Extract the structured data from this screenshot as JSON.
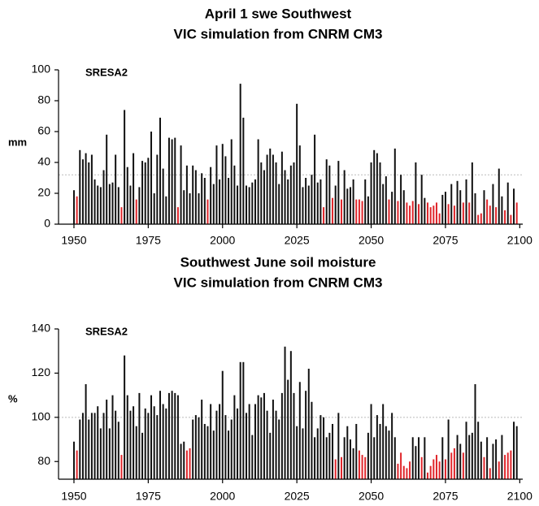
{
  "chart_data": [
    {
      "type": "bar",
      "title": "April 1 swe Southwest",
      "subtitle": "VIC simulation from CNRM CM3",
      "annotation": "SRESA2",
      "y_label": "mm",
      "xlim": [
        1947,
        2101
      ],
      "xticks": [
        1950,
        1975,
        2000,
        2025,
        2050,
        2075,
        2100
      ],
      "ylim": [
        0,
        100
      ],
      "yticks": [
        0,
        20,
        40,
        60,
        80,
        100
      ],
      "reference_line": 32,
      "reference_color": "#bbbbbb",
      "x": [
        1950,
        1951,
        1952,
        1953,
        1954,
        1955,
        1956,
        1957,
        1958,
        1959,
        1960,
        1961,
        1962,
        1963,
        1964,
        1965,
        1966,
        1967,
        1968,
        1969,
        1970,
        1971,
        1972,
        1973,
        1974,
        1975,
        1976,
        1977,
        1978,
        1979,
        1980,
        1981,
        1982,
        1983,
        1984,
        1985,
        1986,
        1987,
        1988,
        1989,
        1990,
        1991,
        1992,
        1993,
        1994,
        1995,
        1996,
        1997,
        1998,
        1999,
        2000,
        2001,
        2002,
        2003,
        2004,
        2005,
        2006,
        2007,
        2008,
        2009,
        2010,
        2011,
        2012,
        2013,
        2014,
        2015,
        2016,
        2017,
        2018,
        2019,
        2020,
        2021,
        2022,
        2023,
        2024,
        2025,
        2026,
        2027,
        2028,
        2029,
        2030,
        2031,
        2032,
        2033,
        2034,
        2035,
        2036,
        2037,
        2038,
        2039,
        2040,
        2041,
        2042,
        2043,
        2044,
        2045,
        2046,
        2047,
        2048,
        2049,
        2050,
        2051,
        2052,
        2053,
        2054,
        2055,
        2056,
        2057,
        2058,
        2059,
        2060,
        2061,
        2062,
        2063,
        2064,
        2065,
        2066,
        2067,
        2068,
        2069,
        2070,
        2071,
        2072,
        2073,
        2074,
        2075,
        2076,
        2077,
        2078,
        2079,
        2080,
        2081,
        2082,
        2083,
        2084,
        2085,
        2086,
        2087,
        2088,
        2089,
        2090,
        2091,
        2092,
        2093,
        2094,
        2095,
        2096,
        2097,
        2098,
        2099
      ],
      "series": [
        {
          "color": "#111111",
          "values": [
            22,
            null,
            48,
            42,
            46,
            40,
            45,
            29,
            25,
            24,
            35,
            58,
            26,
            27,
            45,
            24,
            null,
            74,
            37,
            25,
            46,
            null,
            24,
            41,
            40,
            43,
            60,
            20,
            45,
            69,
            36,
            18,
            56,
            55,
            56,
            null,
            51,
            22,
            38,
            20,
            38,
            35,
            20,
            33,
            30,
            null,
            37,
            26,
            51,
            29,
            52,
            44,
            30,
            55,
            38,
            25,
            91,
            69,
            25,
            24,
            27,
            29,
            55,
            40,
            35,
            45,
            49,
            45,
            40,
            26,
            47,
            35,
            29,
            38,
            40,
            78,
            51,
            24,
            30,
            25,
            32,
            58,
            27,
            29,
            null,
            42,
            38,
            null,
            25,
            41,
            null,
            35,
            23,
            24,
            29,
            null,
            null,
            null,
            29,
            18,
            40,
            48,
            46,
            40,
            26,
            31,
            null,
            21,
            49,
            null,
            32,
            22,
            null,
            null,
            null,
            40,
            null,
            32,
            17,
            null,
            null,
            null,
            null,
            null,
            19,
            21,
            null,
            26,
            null,
            28,
            22,
            null,
            29,
            null,
            40,
            20,
            null,
            null,
            22,
            null,
            null,
            26,
            null,
            36,
            18,
            null,
            27,
            null,
            23,
            null
          ]
        },
        {
          "color": "#e0262b",
          "values": [
            null,
            18,
            null,
            null,
            null,
            null,
            null,
            null,
            null,
            null,
            null,
            null,
            null,
            null,
            null,
            null,
            11,
            null,
            null,
            null,
            null,
            16,
            null,
            null,
            null,
            null,
            null,
            null,
            null,
            null,
            null,
            null,
            null,
            null,
            null,
            11,
            null,
            null,
            null,
            null,
            null,
            null,
            null,
            null,
            null,
            16,
            null,
            null,
            null,
            null,
            null,
            null,
            null,
            null,
            null,
            null,
            null,
            null,
            null,
            null,
            null,
            null,
            null,
            null,
            null,
            null,
            null,
            null,
            null,
            null,
            null,
            null,
            null,
            null,
            null,
            null,
            null,
            null,
            null,
            null,
            null,
            null,
            null,
            null,
            11,
            null,
            null,
            17,
            null,
            null,
            16,
            null,
            null,
            null,
            null,
            16,
            16,
            15,
            null,
            null,
            null,
            null,
            null,
            null,
            null,
            null,
            16,
            null,
            null,
            15,
            null,
            null,
            14,
            12,
            15,
            null,
            13,
            null,
            null,
            14,
            11,
            12,
            14,
            7,
            null,
            null,
            13,
            null,
            12,
            null,
            null,
            14,
            null,
            14,
            null,
            null,
            6,
            7,
            null,
            16,
            12,
            null,
            11,
            null,
            null,
            9,
            null,
            6,
            null,
            14
          ]
        }
      ]
    },
    {
      "type": "bar",
      "title": "Southwest June soil moisture",
      "subtitle": "VIC simulation from CNRM CM3",
      "annotation": "SRESA2",
      "y_label": "%",
      "xlim": [
        1947,
        2101
      ],
      "xticks": [
        1950,
        1975,
        2000,
        2025,
        2050,
        2075,
        2100
      ],
      "ylim": [
        72,
        140
      ],
      "yticks": [
        80,
        100,
        120,
        140
      ],
      "reference_line": 100,
      "reference_color": "#bbbbbb",
      "x": [
        1950,
        1951,
        1952,
        1953,
        1954,
        1955,
        1956,
        1957,
        1958,
        1959,
        1960,
        1961,
        1962,
        1963,
        1964,
        1965,
        1966,
        1967,
        1968,
        1969,
        1970,
        1971,
        1972,
        1973,
        1974,
        1975,
        1976,
        1977,
        1978,
        1979,
        1980,
        1981,
        1982,
        1983,
        1984,
        1985,
        1986,
        1987,
        1988,
        1989,
        1990,
        1991,
        1992,
        1993,
        1994,
        1995,
        1996,
        1997,
        1998,
        1999,
        2000,
        2001,
        2002,
        2003,
        2004,
        2005,
        2006,
        2007,
        2008,
        2009,
        2010,
        2011,
        2012,
        2013,
        2014,
        2015,
        2016,
        2017,
        2018,
        2019,
        2020,
        2021,
        2022,
        2023,
        2024,
        2025,
        2026,
        2027,
        2028,
        2029,
        2030,
        2031,
        2032,
        2033,
        2034,
        2035,
        2036,
        2037,
        2038,
        2039,
        2040,
        2041,
        2042,
        2043,
        2044,
        2045,
        2046,
        2047,
        2048,
        2049,
        2050,
        2051,
        2052,
        2053,
        2054,
        2055,
        2056,
        2057,
        2058,
        2059,
        2060,
        2061,
        2062,
        2063,
        2064,
        2065,
        2066,
        2067,
        2068,
        2069,
        2070,
        2071,
        2072,
        2073,
        2074,
        2075,
        2076,
        2077,
        2078,
        2079,
        2080,
        2081,
        2082,
        2083,
        2084,
        2085,
        2086,
        2087,
        2088,
        2089,
        2090,
        2091,
        2092,
        2093,
        2094,
        2095,
        2096,
        2097,
        2098,
        2099
      ],
      "series": [
        {
          "color": "#111111",
          "values": [
            89,
            null,
            99,
            102,
            115,
            99,
            102,
            102,
            105,
            95,
            102,
            108,
            95,
            110,
            103,
            98,
            null,
            128,
            110,
            103,
            105,
            96,
            111,
            93,
            104,
            102,
            110,
            105,
            101,
            112,
            106,
            104,
            111,
            112,
            111,
            110,
            88,
            89,
            null,
            null,
            99,
            101,
            100,
            108,
            97,
            96,
            106,
            94,
            103,
            106,
            121,
            101,
            94,
            99,
            110,
            104,
            125,
            125,
            102,
            106,
            92,
            106,
            110,
            109,
            111,
            103,
            93,
            108,
            103,
            99,
            111,
            132,
            117,
            130,
            111,
            96,
            116,
            95,
            112,
            122,
            107,
            91,
            95,
            101,
            100,
            91,
            93,
            97,
            null,
            102,
            null,
            91,
            96,
            90,
            86,
            97,
            null,
            null,
            null,
            93,
            106,
            91,
            101,
            97,
            106,
            96,
            94,
            102,
            91,
            null,
            null,
            null,
            null,
            null,
            91,
            87,
            91,
            null,
            91,
            null,
            null,
            null,
            null,
            null,
            91,
            null,
            99,
            null,
            null,
            92,
            88,
            null,
            98,
            92,
            93,
            115,
            98,
            89,
            null,
            91,
            null,
            88,
            90,
            null,
            92,
            null,
            null,
            null,
            98,
            96
          ]
        },
        {
          "color": "#e0262b",
          "values": [
            null,
            85,
            null,
            null,
            null,
            null,
            null,
            null,
            null,
            null,
            null,
            null,
            null,
            null,
            null,
            null,
            83,
            null,
            null,
            null,
            null,
            null,
            null,
            null,
            null,
            null,
            null,
            null,
            null,
            null,
            null,
            null,
            null,
            null,
            null,
            null,
            null,
            null,
            85,
            86,
            null,
            null,
            null,
            null,
            null,
            null,
            null,
            null,
            null,
            null,
            null,
            null,
            null,
            null,
            null,
            null,
            null,
            null,
            null,
            null,
            null,
            null,
            null,
            null,
            null,
            null,
            null,
            null,
            null,
            null,
            null,
            null,
            null,
            null,
            null,
            null,
            null,
            null,
            null,
            null,
            null,
            null,
            null,
            null,
            null,
            null,
            null,
            null,
            81,
            null,
            82,
            null,
            null,
            null,
            null,
            null,
            85,
            83,
            82,
            null,
            null,
            null,
            null,
            null,
            null,
            null,
            null,
            null,
            null,
            79,
            84,
            78,
            77,
            80,
            null,
            null,
            null,
            82,
            null,
            75,
            78,
            81,
            83,
            80,
            null,
            81,
            null,
            84,
            86,
            null,
            null,
            84,
            null,
            null,
            null,
            null,
            null,
            null,
            82,
            null,
            77,
            null,
            null,
            80,
            null,
            83,
            84,
            85,
            null,
            null
          ]
        }
      ]
    }
  ]
}
